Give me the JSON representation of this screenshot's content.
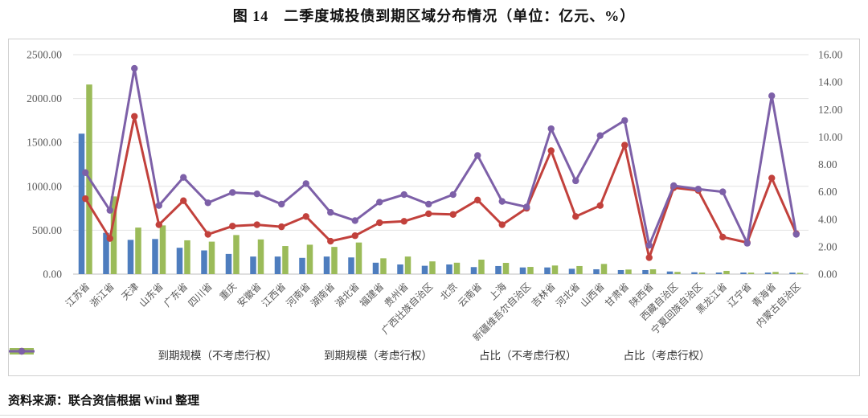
{
  "title": "图 14　二季度城投债到期区域分布情况（单位：亿元、%）",
  "source": "资料来源：联合资信根据 Wind 整理",
  "colors": {
    "bar_blue": "#4E7DBE",
    "bar_green": "#9BBB59",
    "line_red": "#C2413C",
    "line_purple": "#7D60A8",
    "grid": "#e2e2e2",
    "axis_line": "#bfbfbf",
    "tick_text": "#595959",
    "panel_border": "#cfcfcf"
  },
  "chart_data": {
    "type": "combo-bar-line",
    "grid": true,
    "legend_position": "bottom",
    "left_axis": {
      "min": 0,
      "max": 2500,
      "step": 500,
      "unit": "亿元"
    },
    "right_axis": {
      "min": 0,
      "max": 16,
      "step": 2,
      "unit": "%"
    },
    "categories": [
      "江苏省",
      "浙江省",
      "天津",
      "山东省",
      "广东省",
      "四川省",
      "重庆",
      "安徽省",
      "江西省",
      "河南省",
      "湖南省",
      "湖北省",
      "福建省",
      "贵州省",
      "广西壮族自治区",
      "北京",
      "云南省",
      "上海",
      "新疆维吾尔自治区",
      "吉林省",
      "河北省",
      "山西省",
      "甘肃省",
      "陕西省",
      "西藏自治区",
      "宁夏回族自治区",
      "黑龙江省",
      "辽宁省",
      "青海省",
      "内蒙古自治区"
    ],
    "series": [
      {
        "name": "到期规模（不考虑行权）",
        "type": "bar",
        "axis": "left",
        "color": "#4E7DBE",
        "values": [
          1600,
          470,
          390,
          400,
          300,
          270,
          230,
          200,
          200,
          185,
          200,
          190,
          130,
          110,
          95,
          110,
          80,
          92,
          76,
          76,
          61,
          55,
          46,
          46,
          30,
          21,
          18,
          18,
          18,
          17
        ]
      },
      {
        "name": "到期规模（考虑行权）",
        "type": "bar",
        "axis": "left",
        "color": "#9BBB59",
        "values": [
          2160,
          885,
          530,
          555,
          385,
          370,
          445,
          395,
          320,
          335,
          310,
          360,
          180,
          200,
          145,
          130,
          165,
          128,
          82,
          98,
          92,
          116,
          52,
          55,
          25,
          18,
          37,
          17,
          25,
          15
        ]
      },
      {
        "name": "占比（不考虑行权）",
        "type": "line",
        "axis": "right",
        "color": "#C2413C",
        "values": [
          5.5,
          2.6,
          11.5,
          3.6,
          5.35,
          2.9,
          3.5,
          3.6,
          3.45,
          4.2,
          2.4,
          2.8,
          3.75,
          3.85,
          4.4,
          4.35,
          5.4,
          3.6,
          4.8,
          9.0,
          4.2,
          5.0,
          9.4,
          1.2,
          6.3,
          6.1,
          2.7,
          2.3,
          7.0,
          2.95
        ]
      },
      {
        "name": "占比（考虑行权）",
        "type": "line",
        "axis": "right",
        "color": "#7D60A8",
        "values": [
          7.4,
          4.65,
          15.0,
          5.0,
          7.05,
          5.2,
          5.95,
          5.85,
          5.1,
          6.6,
          4.5,
          3.9,
          5.25,
          5.8,
          5.1,
          5.8,
          8.65,
          5.3,
          4.9,
          10.6,
          6.8,
          10.1,
          11.2,
          2.1,
          6.45,
          6.2,
          6.0,
          2.25,
          13.0,
          2.9
        ]
      }
    ]
  }
}
